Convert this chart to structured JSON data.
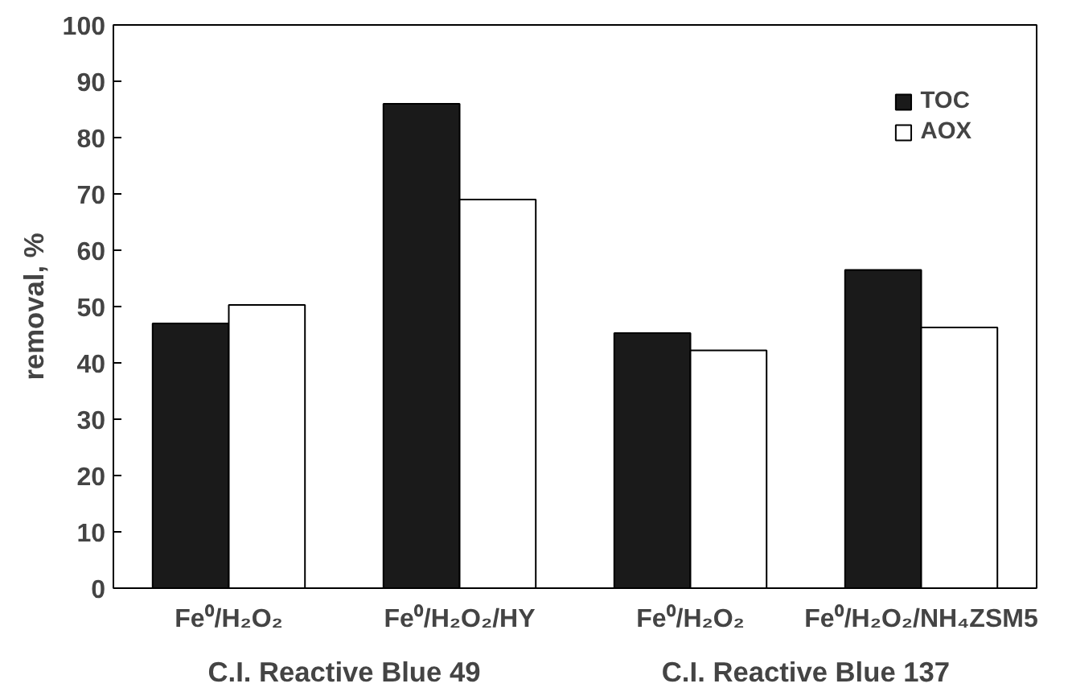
{
  "chart_data": {
    "type": "bar",
    "ylabel": "removal, %",
    "categories": [
      "Fe⁰/H₂O₂",
      "Fe⁰/H₂O₂/HY",
      "Fe⁰/H₂O₂",
      "Fe⁰/H₂O₂/NH₄ZSM5"
    ],
    "series": [
      {
        "name": "TOC",
        "color": "#1a1a1a",
        "values": [
          47,
          86,
          45.3,
          56.5
        ]
      },
      {
        "name": "AOX",
        "color": "#ffffff",
        "values": [
          50.3,
          69,
          42.2,
          46.3
        ]
      }
    ],
    "annotations": [
      "C.I. Reactive Blue 49",
      "C.I. Reactive Blue 137"
    ],
    "ylim": [
      0,
      100
    ],
    "yticks": [
      0,
      10,
      20,
      30,
      40,
      50,
      60,
      70,
      80,
      90,
      100
    ],
    "grid": false,
    "legend": "top right"
  }
}
